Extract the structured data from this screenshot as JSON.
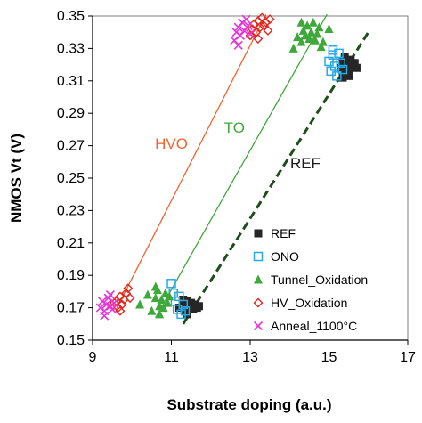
{
  "chart_data": {
    "type": "scatter",
    "xlabel": "Substrate doping (a.u.)",
    "ylabel": "NMOS Vt (V)",
    "xlim": [
      9,
      17
    ],
    "ylim": [
      0.15,
      0.35
    ],
    "xticks": [
      "9",
      "11",
      "13",
      "15",
      "17"
    ],
    "yticks": [
      "0.15",
      "0.17",
      "0.19",
      "0.21",
      "0.23",
      "0.25",
      "0.27",
      "0.29",
      "0.31",
      "0.33",
      "0.35"
    ],
    "grid": false,
    "legend_position": "bottom-right",
    "series": [
      {
        "name": "REF",
        "marker": "square-filled",
        "color": "#262626",
        "points": [
          [
            11.2,
            0.17
          ],
          [
            11.3,
            0.172
          ],
          [
            11.35,
            0.168
          ],
          [
            11.4,
            0.174
          ],
          [
            11.45,
            0.171
          ],
          [
            11.5,
            0.173
          ],
          [
            11.55,
            0.169
          ],
          [
            11.6,
            0.172
          ],
          [
            11.65,
            0.17
          ],
          [
            11.4,
            0.166
          ],
          [
            11.7,
            0.171
          ],
          [
            11.3,
            0.175
          ],
          [
            15.3,
            0.318
          ],
          [
            15.35,
            0.322
          ],
          [
            15.4,
            0.315
          ],
          [
            15.45,
            0.32
          ],
          [
            15.5,
            0.317
          ],
          [
            15.55,
            0.323
          ],
          [
            15.6,
            0.319
          ],
          [
            15.65,
            0.321
          ],
          [
            15.5,
            0.313
          ],
          [
            15.4,
            0.325
          ],
          [
            15.7,
            0.318
          ],
          [
            15.35,
            0.312
          ]
        ]
      },
      {
        "name": "ONO",
        "marker": "square-open",
        "color": "#29a9e0",
        "points": [
          [
            11.0,
            0.185
          ],
          [
            11.1,
            0.174
          ],
          [
            11.15,
            0.169
          ],
          [
            11.2,
            0.177
          ],
          [
            11.25,
            0.166
          ],
          [
            11.3,
            0.172
          ],
          [
            11.05,
            0.179
          ],
          [
            11.35,
            0.168
          ],
          [
            15.0,
            0.322
          ],
          [
            15.05,
            0.316
          ],
          [
            15.1,
            0.326
          ],
          [
            15.15,
            0.319
          ],
          [
            15.2,
            0.313
          ],
          [
            15.25,
            0.327
          ],
          [
            15.3,
            0.321
          ],
          [
            15.35,
            0.317
          ],
          [
            15.1,
            0.329
          ]
        ]
      },
      {
        "name": "Tunnel_Oxidation",
        "marker": "triangle-filled",
        "color": "#3ea83a",
        "points": [
          [
            10.2,
            0.172
          ],
          [
            10.4,
            0.178
          ],
          [
            10.5,
            0.168
          ],
          [
            10.6,
            0.176
          ],
          [
            10.65,
            0.181
          ],
          [
            10.7,
            0.171
          ],
          [
            10.75,
            0.175
          ],
          [
            10.8,
            0.17
          ],
          [
            10.85,
            0.179
          ],
          [
            10.9,
            0.173
          ],
          [
            10.7,
            0.166
          ],
          [
            10.6,
            0.183
          ],
          [
            10.95,
            0.177
          ],
          [
            14.1,
            0.33
          ],
          [
            14.2,
            0.337
          ],
          [
            14.3,
            0.334
          ],
          [
            14.35,
            0.341
          ],
          [
            14.4,
            0.338
          ],
          [
            14.45,
            0.344
          ],
          [
            14.5,
            0.336
          ],
          [
            14.55,
            0.34
          ],
          [
            14.6,
            0.346
          ],
          [
            14.65,
            0.335
          ],
          [
            14.7,
            0.339
          ],
          [
            14.75,
            0.343
          ],
          [
            14.8,
            0.331
          ],
          [
            14.85,
            0.334
          ],
          [
            15.0,
            0.342
          ],
          [
            14.3,
            0.346
          ]
        ]
      },
      {
        "name": "HV_Oxidation",
        "marker": "diamond-open",
        "color": "#e0281e",
        "points": [
          [
            9.6,
            0.174
          ],
          [
            9.65,
            0.17
          ],
          [
            9.7,
            0.177
          ],
          [
            9.75,
            0.172
          ],
          [
            9.8,
            0.175
          ],
          [
            9.85,
            0.179
          ],
          [
            9.9,
            0.182
          ],
          [
            9.95,
            0.176
          ],
          [
            9.7,
            0.168
          ],
          [
            9.55,
            0.173
          ],
          [
            13.0,
            0.338
          ],
          [
            13.05,
            0.342
          ],
          [
            13.1,
            0.345
          ],
          [
            13.15,
            0.34
          ],
          [
            13.2,
            0.347
          ],
          [
            13.25,
            0.343
          ],
          [
            13.3,
            0.349
          ],
          [
            13.35,
            0.344
          ],
          [
            13.4,
            0.346
          ],
          [
            13.45,
            0.341
          ],
          [
            13.2,
            0.336
          ],
          [
            13.5,
            0.348
          ]
        ]
      },
      {
        "name": "Anneal_1100°C",
        "marker": "x",
        "color": "#e632d8",
        "points": [
          [
            9.2,
            0.17
          ],
          [
            9.25,
            0.174
          ],
          [
            9.3,
            0.168
          ],
          [
            9.35,
            0.172
          ],
          [
            9.4,
            0.176
          ],
          [
            9.45,
            0.171
          ],
          [
            9.5,
            0.169
          ],
          [
            9.3,
            0.165
          ],
          [
            9.45,
            0.178
          ],
          [
            9.55,
            0.173
          ],
          [
            12.6,
            0.335
          ],
          [
            12.65,
            0.34
          ],
          [
            12.7,
            0.343
          ],
          [
            12.75,
            0.338
          ],
          [
            12.8,
            0.346
          ],
          [
            12.85,
            0.341
          ],
          [
            12.9,
            0.348
          ],
          [
            12.95,
            0.344
          ],
          [
            12.7,
            0.332
          ],
          [
            13.0,
            0.339
          ]
        ]
      }
    ],
    "fit_lines": [
      {
        "series": "HV_Oxidation",
        "color": "#f0642d",
        "style": "solid",
        "x": [
          9.6,
          13.4
        ],
        "y": [
          0.169,
          0.351
        ]
      },
      {
        "series": "Tunnel_Oxidation",
        "color": "#3ea83a",
        "style": "solid",
        "x": [
          10.6,
          14.95
        ],
        "y": [
          0.164,
          0.351
        ]
      },
      {
        "series": "REF",
        "color": "#1f4d1c",
        "style": "dashed",
        "x": [
          11.3,
          16.0
        ],
        "y": [
          0.16,
          0.34
        ]
      }
    ],
    "annotations": [
      {
        "text": "HVO",
        "color": "#f0642d",
        "x": 11.0,
        "y": 0.268
      },
      {
        "text": "TO",
        "color": "#3ea83a",
        "x": 12.6,
        "y": 0.278
      },
      {
        "text": "REF",
        "color": "#1a1a1a",
        "x": 14.4,
        "y": 0.256
      }
    ]
  }
}
